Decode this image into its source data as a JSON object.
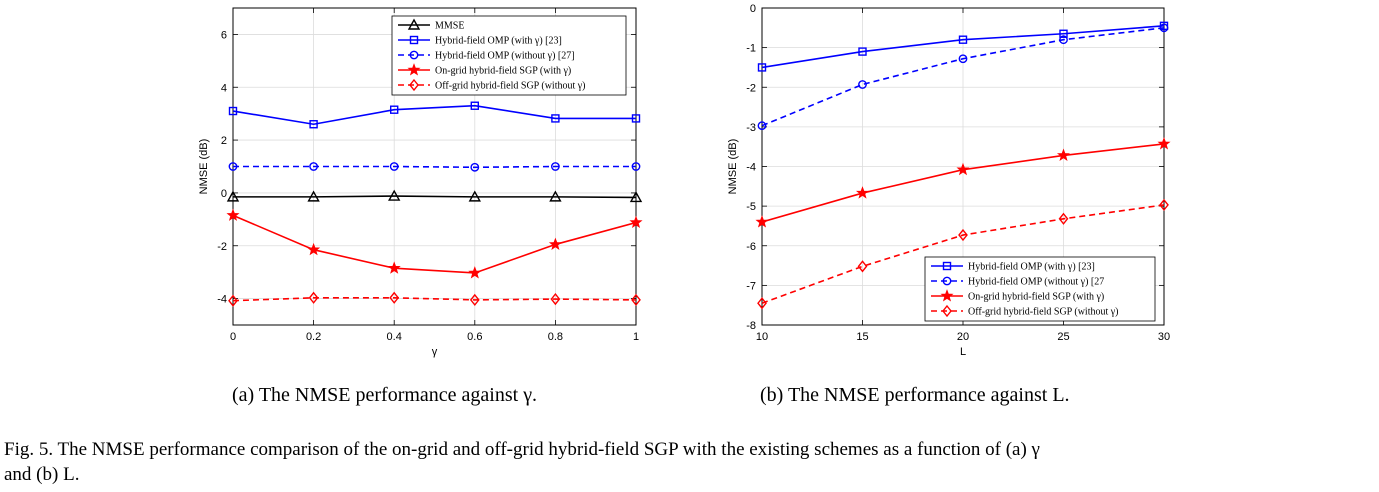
{
  "figure": {
    "subcaption_a": "(a)  The NMSE performance against γ.",
    "subcaption_b": "(b)  The NMSE performance against L.",
    "caption_line1": "Fig. 5.  The NMSE performance comparison of the on-grid and off-grid hybrid-field SGP with the existing schemes as a function of (a) γ",
    "caption_line2": "and (b) L."
  },
  "chart_data": [
    {
      "type": "line",
      "xlabel": "γ",
      "ylabel": "NMSE (dB)",
      "xlim": [
        0,
        1
      ],
      "ylim": [
        -5,
        7
      ],
      "xticks": [
        0,
        0.2,
        0.4,
        0.6,
        0.8,
        1
      ],
      "xticklabels": [
        "0",
        "0.2",
        "0.4",
        "0.6",
        "0.8",
        "1"
      ],
      "yticks": [
        -4,
        -2,
        0,
        2,
        4,
        6
      ],
      "yticklabels": [
        "-4",
        "-2",
        "0",
        "2",
        "4",
        "6"
      ],
      "grid": true,
      "legend_position": "top-right",
      "x": [
        0,
        0.2,
        0.4,
        0.6,
        0.8,
        1
      ],
      "series": [
        {
          "name": "MMSE",
          "color": "#000000",
          "dash": "solid",
          "marker": "triangle",
          "values": [
            -0.15,
            -0.15,
            -0.12,
            -0.15,
            -0.15,
            -0.17
          ]
        },
        {
          "name": "Hybrid-field OMP (with γ) [23]",
          "color": "#0000ff",
          "dash": "solid",
          "marker": "square",
          "values": [
            3.1,
            2.6,
            3.15,
            3.3,
            2.82,
            2.82
          ]
        },
        {
          "name": "Hybrid-field OMP (without γ) [27]",
          "color": "#0000ff",
          "dash": "dashed",
          "marker": "circle",
          "values": [
            1.0,
            1.0,
            1.0,
            0.97,
            1.0,
            1.0
          ]
        },
        {
          "name": "On-grid hybrid-field SGP (with γ)",
          "color": "#ff0000",
          "dash": "solid",
          "marker": "star",
          "values": [
            -0.85,
            -2.15,
            -2.85,
            -3.03,
            -1.95,
            -1.12
          ]
        },
        {
          "name": "Off-grid hybrid-field SGP (without γ)",
          "color": "#ff0000",
          "dash": "dashed",
          "marker": "diamond",
          "values": [
            -4.08,
            -3.97,
            -3.97,
            -4.05,
            -4.02,
            -4.05
          ]
        }
      ]
    },
    {
      "type": "line",
      "xlabel": "L",
      "ylabel": "NMSE (dB)",
      "xlim": [
        10,
        30
      ],
      "ylim": [
        -8,
        0
      ],
      "xticks": [
        10,
        15,
        20,
        25,
        30
      ],
      "xticklabels": [
        "10",
        "15",
        "20",
        "25",
        "30"
      ],
      "yticks": [
        -8,
        -7,
        -6,
        -5,
        -4,
        -3,
        -2,
        -1,
        0
      ],
      "yticklabels": [
        "-8",
        "-7",
        "-6",
        "-5",
        "-4",
        "-3",
        "-2",
        "-1",
        "0"
      ],
      "grid": true,
      "legend_position": "bottom-right",
      "x": [
        10,
        15,
        20,
        25,
        30
      ],
      "series": [
        {
          "name": "Hybrid-field OMP (with γ) [23]",
          "color": "#0000ff",
          "dash": "solid",
          "marker": "square",
          "values": [
            -1.5,
            -1.1,
            -0.8,
            -0.65,
            -0.45
          ]
        },
        {
          "name": "Hybrid-field OMP (without γ) [27",
          "color": "#0000ff",
          "dash": "dashed",
          "marker": "circle",
          "values": [
            -2.97,
            -1.93,
            -1.28,
            -0.8,
            -0.5
          ]
        },
        {
          "name": "On-grid hybrid-field SGP (with γ)",
          "color": "#ff0000",
          "dash": "solid",
          "marker": "star",
          "values": [
            -5.4,
            -4.67,
            -4.08,
            -3.72,
            -3.43
          ]
        },
        {
          "name": "Off-grid hybrid-field SGP (without γ)",
          "color": "#ff0000",
          "dash": "dashed",
          "marker": "diamond",
          "values": [
            -7.45,
            -6.52,
            -5.73,
            -5.32,
            -4.97
          ]
        }
      ]
    }
  ]
}
